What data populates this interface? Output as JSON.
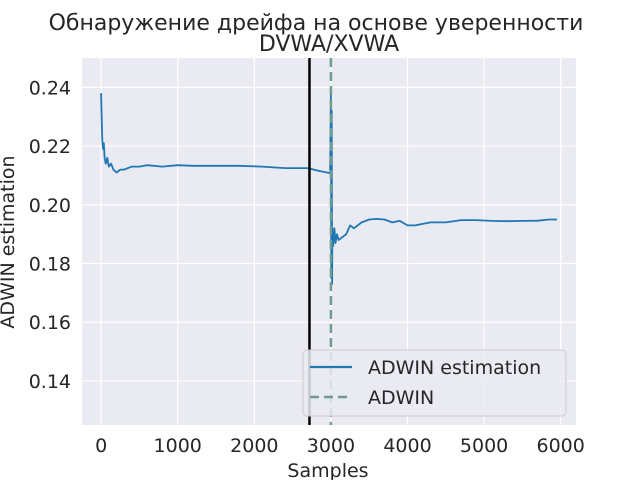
{
  "chart_data": {
    "type": "line",
    "title": "Обнаружение дрейфа на основе уверенности",
    "subtitle": "DVWA/XVWA",
    "xlabel": "Samples",
    "ylabel": "ADWIN estimation",
    "xlim": [
      -250,
      6200
    ],
    "ylim": [
      0.125,
      0.25
    ],
    "x_ticks": [
      0,
      1000,
      2000,
      3000,
      4000,
      5000,
      6000
    ],
    "x_tick_labels": [
      "0",
      "1000",
      "2000",
      "3000",
      "4000",
      "5000",
      "6000"
    ],
    "y_ticks": [
      0.14,
      0.16,
      0.18,
      0.2,
      0.22,
      0.24
    ],
    "y_tick_labels": [
      "0.14",
      "0.16",
      "0.18",
      "0.20",
      "0.22",
      "0.24"
    ],
    "grid": true,
    "legend_position": "bottom-right",
    "series": [
      {
        "name": "ADWIN estimation",
        "color": "#1f77b4",
        "points": [
          [
            0,
            0.238
          ],
          [
            8,
            0.228
          ],
          [
            15,
            0.222
          ],
          [
            25,
            0.219
          ],
          [
            35,
            0.221
          ],
          [
            45,
            0.216
          ],
          [
            60,
            0.214
          ],
          [
            80,
            0.216
          ],
          [
            100,
            0.213
          ],
          [
            130,
            0.214
          ],
          [
            160,
            0.212
          ],
          [
            200,
            0.211
          ],
          [
            250,
            0.212
          ],
          [
            300,
            0.212
          ],
          [
            400,
            0.213
          ],
          [
            500,
            0.213
          ],
          [
            600,
            0.2135
          ],
          [
            800,
            0.213
          ],
          [
            1000,
            0.2135
          ],
          [
            1200,
            0.2133
          ],
          [
            1500,
            0.2133
          ],
          [
            1800,
            0.2133
          ],
          [
            2100,
            0.213
          ],
          [
            2400,
            0.2125
          ],
          [
            2700,
            0.2125
          ],
          [
            2850,
            0.2115
          ],
          [
            2990,
            0.2108
          ],
          [
            3000,
            0.238
          ],
          [
            3005,
            0.175
          ],
          [
            3010,
            0.232
          ],
          [
            3015,
            0.173
          ],
          [
            3020,
            0.192
          ],
          [
            3030,
            0.186
          ],
          [
            3045,
            0.192
          ],
          [
            3060,
            0.187
          ],
          [
            3080,
            0.19
          ],
          [
            3100,
            0.188
          ],
          [
            3150,
            0.189
          ],
          [
            3200,
            0.19
          ],
          [
            3250,
            0.193
          ],
          [
            3300,
            0.192
          ],
          [
            3400,
            0.194
          ],
          [
            3500,
            0.195
          ],
          [
            3600,
            0.1952
          ],
          [
            3700,
            0.195
          ],
          [
            3800,
            0.194
          ],
          [
            3900,
            0.1945
          ],
          [
            4000,
            0.193
          ],
          [
            4100,
            0.193
          ],
          [
            4200,
            0.1935
          ],
          [
            4300,
            0.194
          ],
          [
            4500,
            0.194
          ],
          [
            4700,
            0.1948
          ],
          [
            4900,
            0.1948
          ],
          [
            5100,
            0.1945
          ],
          [
            5300,
            0.1944
          ],
          [
            5500,
            0.1945
          ],
          [
            5700,
            0.1946
          ],
          [
            5850,
            0.195
          ],
          [
            5950,
            0.195
          ]
        ]
      }
    ],
    "drift_markers": [
      {
        "x": 2720,
        "color": "#000000",
        "style": "solid"
      },
      {
        "name": "ADWIN",
        "x": 3000,
        "color": "#6e9d8f",
        "style": "dashed"
      }
    ]
  }
}
